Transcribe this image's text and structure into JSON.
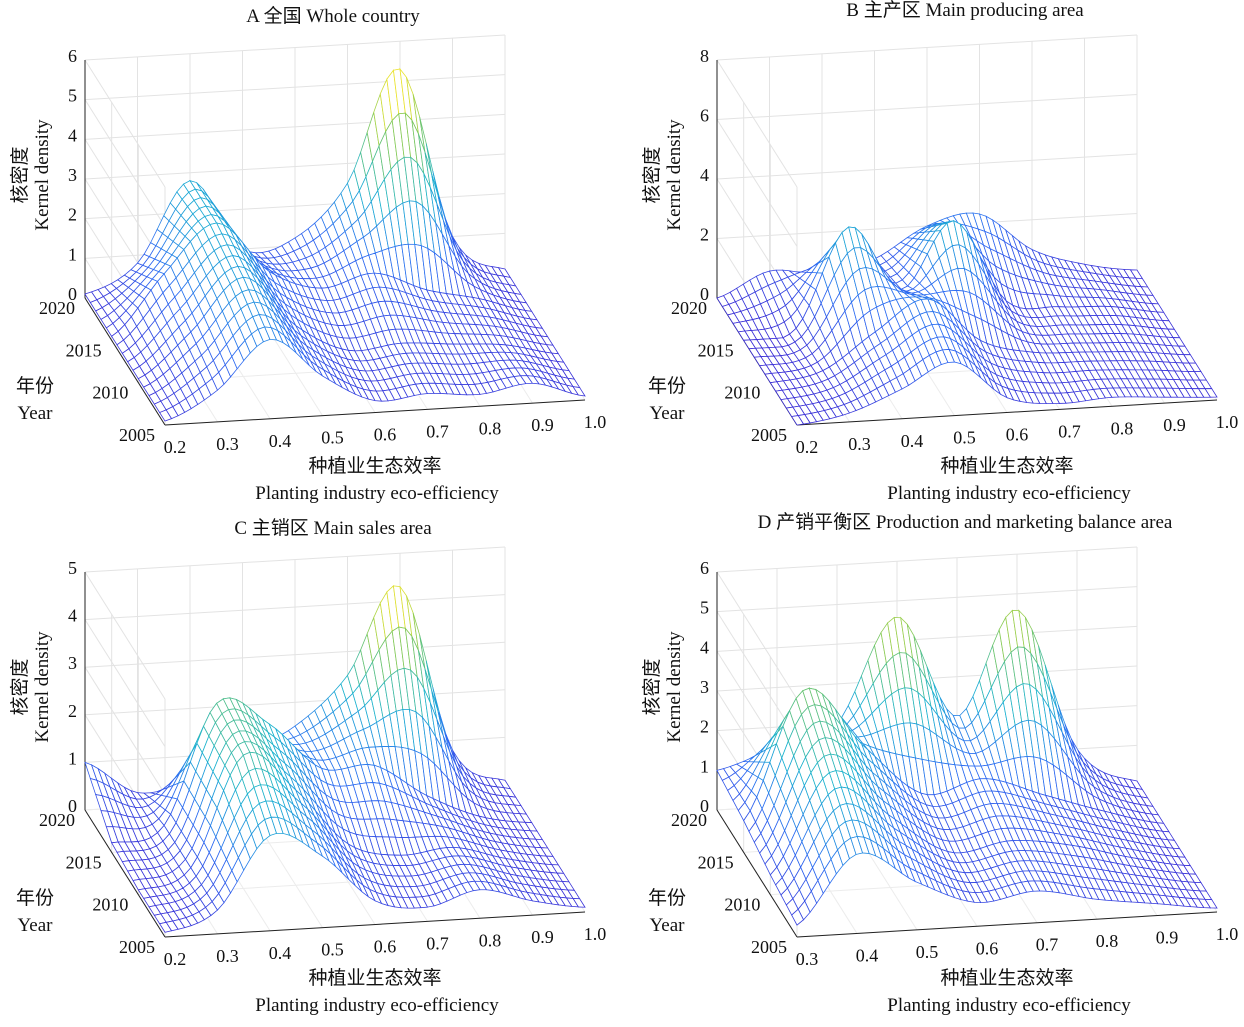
{
  "chart_data": [
    {
      "type": "surface",
      "title": "A   全国 Whole country",
      "zlabel_cn": "核密度",
      "zlabel_en": "Kernel density",
      "ylabel_cn": "年份",
      "ylabel_en": "Year",
      "xlabel_cn": "种植业生态效率",
      "xlabel_en": "Planting industry eco-efficiency",
      "xlim": [
        0.2,
        1.0
      ],
      "zlim": [
        0,
        6
      ],
      "x_ticks": [
        "0.2",
        "0.3",
        "0.4",
        "0.5",
        "0.6",
        "0.7",
        "0.8",
        "0.9",
        "1.0"
      ],
      "year_ticks": [
        "2005",
        "2010",
        "2015",
        "2020"
      ],
      "z_ticks": [
        "0",
        "1",
        "2",
        "3",
        "4",
        "5",
        "6"
      ],
      "x": [
        0.2,
        0.3,
        0.4,
        0.5,
        0.6,
        0.7,
        0.8,
        0.9,
        1.0
      ],
      "series": [
        {
          "year": 2005,
          "values": [
            0.1,
            0.8,
            2.0,
            1.0,
            0.3,
            0.4,
            0.3,
            0.5,
            0.1
          ]
        },
        {
          "year": 2010,
          "values": [
            0.1,
            1.2,
            2.5,
            1.2,
            0.5,
            0.6,
            0.5,
            0.4,
            0.1
          ]
        },
        {
          "year": 2015,
          "values": [
            0.1,
            1.6,
            2.8,
            1.5,
            1.0,
            1.3,
            0.8,
            0.5,
            0.1
          ]
        },
        {
          "year": 2020,
          "values": [
            0.1,
            0.8,
            2.8,
            1.0,
            1.2,
            2.5,
            5.3,
            1.0,
            0.1
          ]
        }
      ]
    },
    {
      "type": "surface",
      "title": "B   主产区 Main producing area",
      "zlabel_cn": "核密度",
      "zlabel_en": "Kernel density",
      "ylabel_cn": "年份",
      "ylabel_en": "Year",
      "xlabel_cn": "种植业生态效率",
      "xlabel_en": "Planting industry eco-efficiency",
      "xlim": [
        0.2,
        1.0
      ],
      "zlim": [
        0,
        8
      ],
      "x_ticks": [
        "0.2",
        "0.3",
        "0.4",
        "0.5",
        "0.6",
        "0.7",
        "0.8",
        "0.9",
        "1.0"
      ],
      "year_ticks": [
        "2005",
        "2010",
        "2015",
        "2020"
      ],
      "z_ticks": [
        "0",
        "2",
        "4",
        "6",
        "8"
      ],
      "x": [
        0.2,
        0.3,
        0.4,
        0.5,
        0.6,
        0.7,
        0.8,
        0.9,
        1.0
      ],
      "series": [
        {
          "year": 2005,
          "values": [
            0.0,
            0.3,
            1.0,
            1.8,
            0.5,
            0.2,
            0.3,
            0.2,
            0.1
          ]
        },
        {
          "year": 2010,
          "values": [
            0.0,
            0.3,
            1.5,
            2.5,
            1.0,
            0.5,
            0.4,
            0.3,
            0.1
          ]
        },
        {
          "year": 2015,
          "values": [
            0.0,
            0.3,
            3.6,
            1.4,
            3.6,
            0.8,
            0.5,
            0.4,
            0.1
          ]
        },
        {
          "year": 2020,
          "values": [
            0.0,
            0.8,
            0.6,
            1.0,
            2.0,
            2.3,
            1.0,
            0.4,
            0.1
          ]
        }
      ]
    },
    {
      "type": "surface",
      "title": "C   主销区 Main sales area",
      "zlabel_cn": "核密度",
      "zlabel_en": "Kernel density",
      "ylabel_cn": "年份",
      "ylabel_en": "Year",
      "xlabel_cn": "种植业生态效率",
      "xlabel_en": "Planting industry eco-efficiency",
      "xlim": [
        0.2,
        1.0
      ],
      "zlim": [
        0,
        5
      ],
      "x_ticks": [
        "0.2",
        "0.3",
        "0.4",
        "0.5",
        "0.6",
        "0.7",
        "0.8",
        "0.9",
        "1.0"
      ],
      "year_ticks": [
        "2005",
        "2010",
        "2015",
        "2020"
      ],
      "z_ticks": [
        "0",
        "1",
        "2",
        "3",
        "4",
        "5"
      ],
      "x": [
        0.2,
        0.3,
        0.4,
        0.5,
        0.6,
        0.7,
        0.8,
        0.9,
        1.0
      ],
      "series": [
        {
          "year": 2005,
          "values": [
            0.1,
            0.5,
            2.0,
            1.5,
            0.5,
            0.3,
            0.6,
            0.3,
            0.1
          ]
        },
        {
          "year": 2010,
          "values": [
            0.1,
            0.5,
            2.8,
            2.0,
            0.8,
            0.5,
            0.6,
            0.3,
            0.1
          ]
        },
        {
          "year": 2015,
          "values": [
            0.2,
            0.5,
            3.0,
            2.5,
            1.5,
            1.5,
            0.8,
            0.3,
            0.1
          ]
        },
        {
          "year": 2020,
          "values": [
            1.0,
            0.3,
            0.5,
            1.0,
            1.5,
            2.5,
            4.3,
            0.8,
            0.1
          ]
        }
      ]
    },
    {
      "type": "surface",
      "title": "D   产销平衡区 Production and marketing balance area",
      "zlabel_cn": "核密度",
      "zlabel_en": "Kernel density",
      "ylabel_cn": "年份",
      "ylabel_en": "Year",
      "xlabel_cn": "种植业生态效率",
      "xlabel_en": "Planting industry eco-efficiency",
      "xlim": [
        0.3,
        1.0
      ],
      "zlim": [
        0,
        6
      ],
      "x_ticks": [
        "0.3",
        "0.4",
        "0.5",
        "0.6",
        "0.7",
        "0.8",
        "0.9",
        "1.0"
      ],
      "year_ticks": [
        "2005",
        "2010",
        "2015",
        "2020"
      ],
      "z_ticks": [
        "0",
        "1",
        "2",
        "3",
        "4",
        "5",
        "6"
      ],
      "x": [
        0.3,
        0.4,
        0.5,
        0.6,
        0.7,
        0.8,
        0.9,
        1.0
      ],
      "series": [
        {
          "year": 2005,
          "values": [
            0.3,
            2.0,
            1.2,
            0.6,
            0.8,
            0.5,
            0.3,
            0.1
          ]
        },
        {
          "year": 2010,
          "values": [
            0.5,
            3.0,
            1.8,
            0.8,
            1.0,
            0.8,
            0.4,
            0.1
          ]
        },
        {
          "year": 2015,
          "values": [
            0.8,
            4.0,
            2.5,
            1.2,
            1.5,
            1.0,
            0.5,
            0.1
          ]
        },
        {
          "year": 2020,
          "values": [
            1.0,
            1.5,
            2.0,
            4.6,
            2.0,
            4.6,
            1.0,
            0.1
          ]
        }
      ]
    }
  ]
}
